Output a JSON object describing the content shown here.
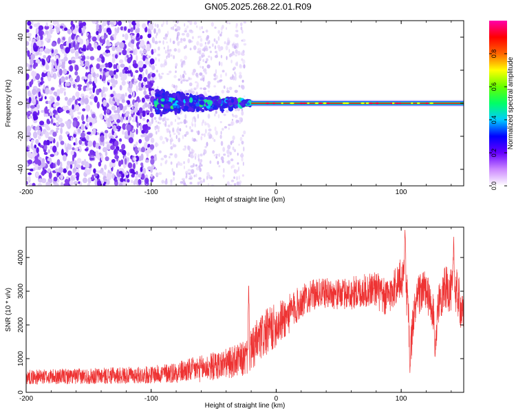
{
  "title": "GN05.2025.268.22.01.R09",
  "chart_data": [
    {
      "type": "heatmap",
      "xlabel": "Height of straight line (km)",
      "ylabel": "Frequency (Hz)",
      "xlim": [
        -200,
        150
      ],
      "ylim": [
        -50,
        50
      ],
      "xticks": [
        -200,
        -100,
        0,
        100
      ],
      "xtick_labels": [
        "-200",
        "-100",
        "0",
        "100"
      ],
      "yticks": [
        -40,
        -20,
        0,
        20,
        40
      ],
      "ytick_labels": [
        "-40",
        "-20",
        "0",
        "20",
        "40"
      ],
      "colorbar": {
        "label": "Normalized spectral amplitude",
        "range": [
          0,
          1
        ],
        "ticks": [
          0.0,
          0.2,
          0.4,
          0.6,
          0.8
        ],
        "tick_labels": [
          "0.0",
          "0.2",
          "0.4",
          "0.6",
          "0.8"
        ],
        "colors": [
          "#ffffff",
          "#cc88ff",
          "#6600ff",
          "#0000ff",
          "#00ccff",
          "#00ff66",
          "#66ff00",
          "#ffff00",
          "#ff6600",
          "#ff0000",
          "#ff00aa"
        ]
      },
      "features": {
        "scatter_region_x": [
          -200,
          -25
        ],
        "dense_scatter_x": [
          -200,
          -97
        ],
        "faint_scatter_x": [
          -97,
          -25
        ],
        "transition_x": [
          -97,
          -20
        ],
        "ridge_x": [
          -20,
          150
        ],
        "ridge_frequency_hz": 0
      }
    },
    {
      "type": "line",
      "xlabel": "Height of straight line (km)",
      "ylabel": "SNR (10 * v/v)",
      "xlim": [
        -200,
        150
      ],
      "ylim": [
        0,
        4900
      ],
      "xticks": [
        -200,
        -100,
        0,
        100
      ],
      "xtick_labels": [
        "-200",
        "-100",
        "0",
        "100"
      ],
      "yticks": [
        0,
        1000,
        2000,
        3000,
        4000
      ],
      "ytick_labels": [
        "0",
        "1000",
        "2000",
        "3000",
        "4000"
      ],
      "color": "#ee3333",
      "envelope": {
        "x": [
          -200,
          -150,
          -100,
          -80,
          -60,
          -40,
          -30,
          -25,
          -20,
          -15,
          -10,
          -5,
          0,
          5,
          10,
          15,
          20,
          30,
          40,
          50,
          60,
          70,
          80,
          85,
          90,
          95,
          100,
          103,
          105,
          108,
          110,
          115,
          120,
          125,
          128,
          130,
          135,
          140,
          145,
          150
        ],
        "mean": [
          450,
          480,
          520,
          600,
          700,
          850,
          950,
          1000,
          1200,
          1500,
          1700,
          1850,
          2000,
          2150,
          2300,
          2500,
          2700,
          2900,
          2950,
          2900,
          2950,
          3000,
          3100,
          2800,
          2850,
          3150,
          3350,
          3500,
          2600,
          1500,
          2300,
          3000,
          3000,
          2400,
          1800,
          2700,
          3100,
          3000,
          2950,
          2100
        ],
        "spread": [
          220,
          240,
          260,
          320,
          400,
          450,
          500,
          550,
          650,
          700,
          700,
          700,
          650,
          650,
          600,
          550,
          500,
          450,
          450,
          450,
          500,
          500,
          550,
          600,
          550,
          600,
          650,
          700,
          700,
          600,
          600,
          650,
          600,
          600,
          500,
          600,
          650,
          650,
          700,
          600
        ]
      },
      "peaks": [
        {
          "x": -22,
          "y": 3300
        },
        {
          "x": 103,
          "y": 4900
        },
        {
          "x": 107,
          "y": 550
        },
        {
          "x": 127,
          "y": 1000
        },
        {
          "x": 142,
          "y": 4650
        }
      ]
    }
  ]
}
